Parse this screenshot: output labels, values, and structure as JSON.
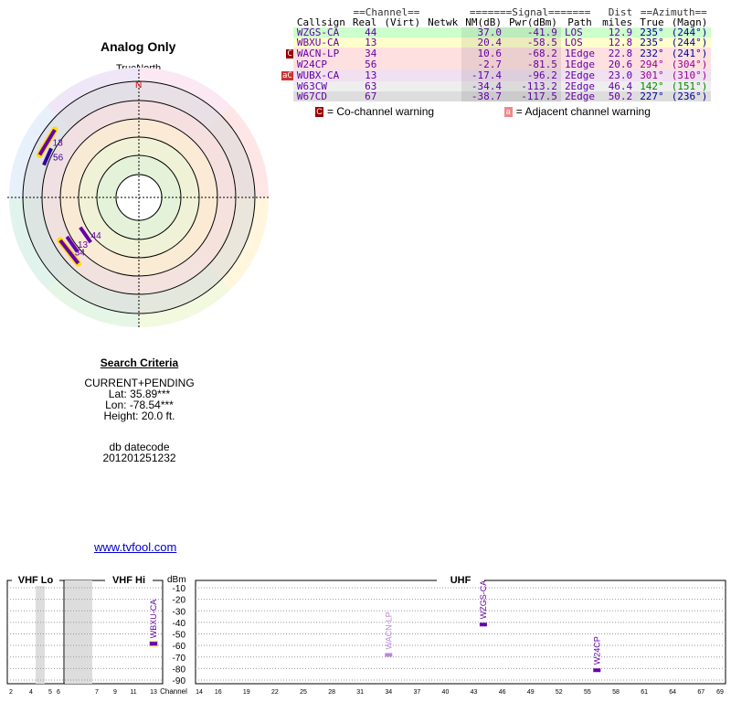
{
  "radar": {
    "title": "Analog Only",
    "north_label": "TrueNorth",
    "north_mark": "N",
    "markers": [
      {
        "label": "13",
        "azimuth": 301,
        "level": 0.78,
        "color": "#6600aa",
        "highlight": true
      },
      {
        "label": "56",
        "azimuth": 294,
        "level": 0.72,
        "color": "#330099",
        "highlight": false
      },
      {
        "label": "44",
        "azimuth": 235,
        "level": 0.42,
        "color": "#6600aa",
        "highlight": false
      },
      {
        "label": "13",
        "azimuth": 235,
        "level": 0.56,
        "color": "#6600aa",
        "highlight": false
      },
      {
        "label": "34",
        "azimuth": 232,
        "level": 0.62,
        "color": "#6600aa",
        "highlight": true
      }
    ]
  },
  "search": {
    "title": "Search Criteria",
    "mode": "CURRENT+PENDING",
    "lat": "Lat: 35.89***",
    "lon": "Lon: -78.54***",
    "height": "Height: 20.0 ft.",
    "db_label": "db datecode",
    "db_value": "201201251232"
  },
  "link": "www.tvfool.com",
  "table": {
    "group_channel": "==Channel==",
    "group_signal": "=======Signal=======",
    "group_dist": "Dist",
    "group_azimuth": "==Azimuth==",
    "col_callsign": "Callsign",
    "col_real": "Real",
    "col_virt": "(Virt)",
    "col_netwk": "Netwk",
    "col_nm": "NM(dB)",
    "col_pwr": "Pwr(dBm)",
    "col_path": "Path",
    "col_miles": "miles",
    "col_true": "True",
    "col_magn": "(Magn)",
    "rows": [
      {
        "callsign": "WZGS-CA",
        "real": "44",
        "nm": "37.0",
        "pwr": "-41.9",
        "path": "LOS",
        "miles": "12.9",
        "true": "235°",
        "magn": "(244°)",
        "bg": "#ccffcc",
        "color": "#6600aa",
        "azcolor": "#000099",
        "flag": ""
      },
      {
        "callsign": "WBXU-CA",
        "real": "13",
        "nm": "20.4",
        "pwr": "-58.5",
        "path": "LOS",
        "miles": "12.8",
        "true": "235°",
        "magn": "(244°)",
        "bg": "#ffffcc",
        "color": "#6600aa",
        "azcolor": "#000099",
        "flag": ""
      },
      {
        "callsign": "WACN-LP",
        "real": "34",
        "nm": "10.6",
        "pwr": "-68.2",
        "path": "1Edge",
        "miles": "22.8",
        "true": "232°",
        "magn": "(241°)",
        "bg": "#ffe0e0",
        "color": "#6600aa",
        "azcolor": "#000099",
        "flag": "C"
      },
      {
        "callsign": "W24CP",
        "real": "56",
        "nm": "-2.7",
        "pwr": "-81.5",
        "path": "1Edge",
        "miles": "20.6",
        "true": "294°",
        "magn": "(304°)",
        "bg": "#ffe0e0",
        "color": "#6600aa",
        "azcolor": "#990099",
        "flag": ""
      },
      {
        "callsign": "WUBX-CA",
        "real": "13",
        "nm": "-17.4",
        "pwr": "-96.2",
        "path": "2Edge",
        "miles": "23.0",
        "true": "301°",
        "magn": "(310°)",
        "bg": "#f0e0f0",
        "color": "#6600aa",
        "azcolor": "#990099",
        "flag": "aC"
      },
      {
        "callsign": "W63CW",
        "real": "63",
        "nm": "-34.4",
        "pwr": "-113.2",
        "path": "2Edge",
        "miles": "46.4",
        "true": "142°",
        "magn": "(151°)",
        "bg": "#eeeeee",
        "color": "#6600aa",
        "azcolor": "#008800",
        "flag": ""
      },
      {
        "callsign": "W67CD",
        "real": "67",
        "nm": "-38.7",
        "pwr": "-117.5",
        "path": "2Edge",
        "miles": "50.2",
        "true": "227°",
        "magn": "(236°)",
        "bg": "#dddddd",
        "color": "#6600aa",
        "azcolor": "#000099",
        "flag": ""
      }
    ]
  },
  "legend": {
    "co_mark": "C",
    "co_text": "= Co-channel warning",
    "adj_mark": "a",
    "adj_text": "= Adjacent channel warning"
  },
  "spectrum": {
    "vhf_lo": "VHF Lo",
    "vhf_hi": "VHF Hi",
    "uhf": "UHF",
    "unit": "dBm",
    "channel_label": "Channel",
    "db_ticks": [
      "-10",
      "-20",
      "-30",
      "-40",
      "-50",
      "-60",
      "-70",
      "-80",
      "-90"
    ],
    "vhf_lo_channels": [
      "2",
      "4",
      "5",
      "6"
    ],
    "vhf_hi_channels": [
      "7",
      "9",
      "11",
      "13"
    ],
    "uhf_channels": [
      "14",
      "16",
      "19",
      "22",
      "25",
      "28",
      "31",
      "34",
      "37",
      "40",
      "43",
      "46",
      "49",
      "52",
      "55",
      "58",
      "61",
      "64",
      "67",
      "69"
    ],
    "stations": [
      {
        "callsign": "WBXU-CA",
        "channel": 13,
        "dbm": -58.5,
        "color": "#6600aa"
      },
      {
        "callsign": "WACN-LP",
        "channel": 34,
        "dbm": -68.2,
        "color": "#bb88dd"
      },
      {
        "callsign": "WZGS-CA",
        "channel": 44,
        "dbm": -41.9,
        "color": "#6600aa"
      },
      {
        "callsign": "W24CP",
        "channel": 56,
        "dbm": -81.5,
        "color": "#6600aa"
      }
    ]
  }
}
